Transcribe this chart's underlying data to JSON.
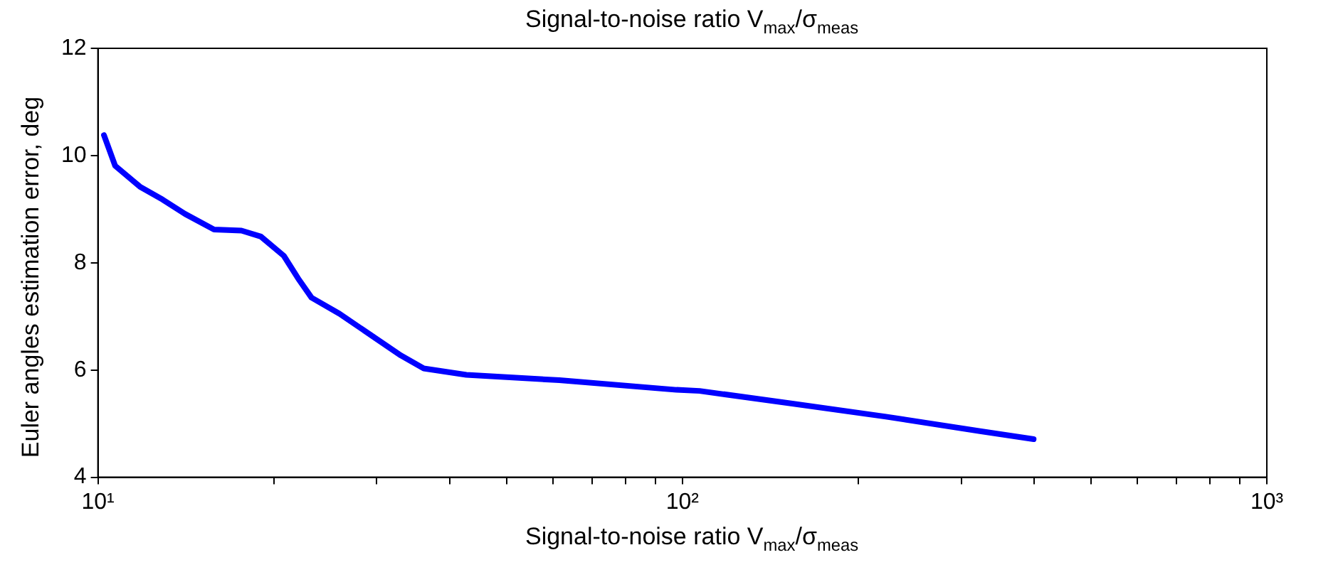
{
  "chart_data": {
    "type": "line",
    "title": "Signal-to-noise ratio V$_{max}$/σ$_{meas}$",
    "xlabel": "Signal-to-noise ratio V$_{max}$/σ$_{meas}$",
    "ylabel": "Euler angles estimation error, deg",
    "log": "x",
    "grid": false,
    "legend": false,
    "marker": "none",
    "line_style": "solid",
    "xlim": [
      10,
      1000
    ],
    "xticks": [
      {
        "value": 10,
        "label": "10¹"
      },
      {
        "value": 20,
        "label": null
      },
      {
        "value": 30,
        "label": null
      },
      {
        "value": 40,
        "label": null
      },
      {
        "value": 50,
        "label": null
      },
      {
        "value": 60,
        "label": null
      },
      {
        "value": 70,
        "label": null
      },
      {
        "value": 80,
        "label": null
      },
      {
        "value": 90,
        "label": null
      },
      {
        "value": 100,
        "label": "10²"
      },
      {
        "value": 200,
        "label": null
      },
      {
        "value": 300,
        "label": null
      },
      {
        "value": 400,
        "label": null
      },
      {
        "value": 500,
        "label": null
      },
      {
        "value": 600,
        "label": null
      },
      {
        "value": 700,
        "label": null
      },
      {
        "value": 800,
        "label": null
      },
      {
        "value": 900,
        "label": null
      },
      {
        "value": 1000,
        "label": "10³"
      }
    ],
    "ylim": [
      4,
      12
    ],
    "yticks": [
      4,
      6,
      8,
      10,
      12
    ],
    "series": [
      {
        "color": "#0000ff",
        "x": [
          10.24,
          10.7,
          11.8,
          12.9,
          14.1,
          15.8,
          17.6,
          19.0,
          20.8,
          22.0,
          23.2,
          25.9,
          29.5,
          33.0,
          36.1,
          42.7,
          61.6,
          97.7,
          107,
          155,
          223,
          323,
          399
        ],
        "values": [
          10.38,
          9.81,
          9.42,
          9.18,
          8.91,
          8.62,
          8.6,
          8.49,
          8.13,
          7.71,
          7.35,
          7.05,
          6.63,
          6.27,
          6.03,
          5.91,
          5.81,
          5.63,
          5.61,
          5.37,
          5.13,
          4.86,
          4.71
        ]
      }
    ]
  }
}
